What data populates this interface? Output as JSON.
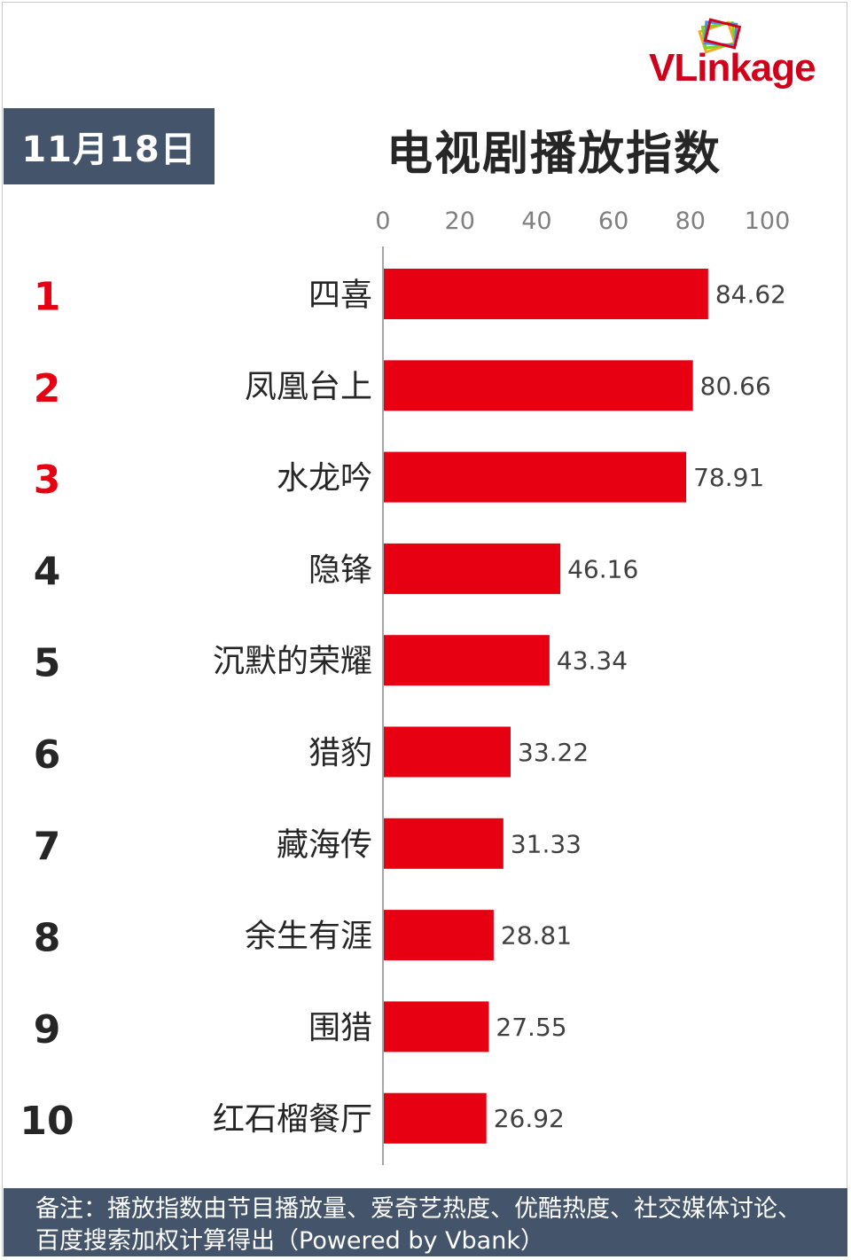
{
  "header": {
    "date": "11月18日",
    "title": "电视剧播放指数"
  },
  "logo": {
    "text_vl": "VL",
    "text_rest": "inkage"
  },
  "footer": {
    "note": "备注：播放指数由节目播放量、爱奇艺热度、优酷热度、社交媒体讨论、百度搜索加权计算得出（Powered by Vbank）"
  },
  "colors": {
    "bar": "#e60012",
    "rank_top": "#e60012",
    "rank_other": "#262626",
    "badge_bg": "#44546a",
    "axis": "#a6a6a6"
  },
  "chart_data": {
    "type": "bar",
    "orientation": "horizontal",
    "xlim": [
      0,
      100
    ],
    "xticks": [
      0,
      20,
      40,
      60,
      80,
      100
    ],
    "ranks": [
      "1",
      "2",
      "3",
      "4",
      "5",
      "6",
      "7",
      "8",
      "9",
      "10"
    ],
    "categories": [
      "四喜",
      "凤凰台上",
      "水龙吟",
      "隐锋",
      "沉默的荣耀",
      "猎豹",
      "藏海传",
      "余生有涯",
      "围猎",
      "红石榴餐厅"
    ],
    "values": [
      84.62,
      80.66,
      78.91,
      46.16,
      43.34,
      33.22,
      31.33,
      28.81,
      27.55,
      26.92
    ],
    "value_labels": [
      "84.62",
      "80.66",
      "78.91",
      "46.16",
      "43.34",
      "33.22",
      "31.33",
      "28.81",
      "27.55",
      "26.92"
    ],
    "grid": false,
    "legend": "none"
  }
}
